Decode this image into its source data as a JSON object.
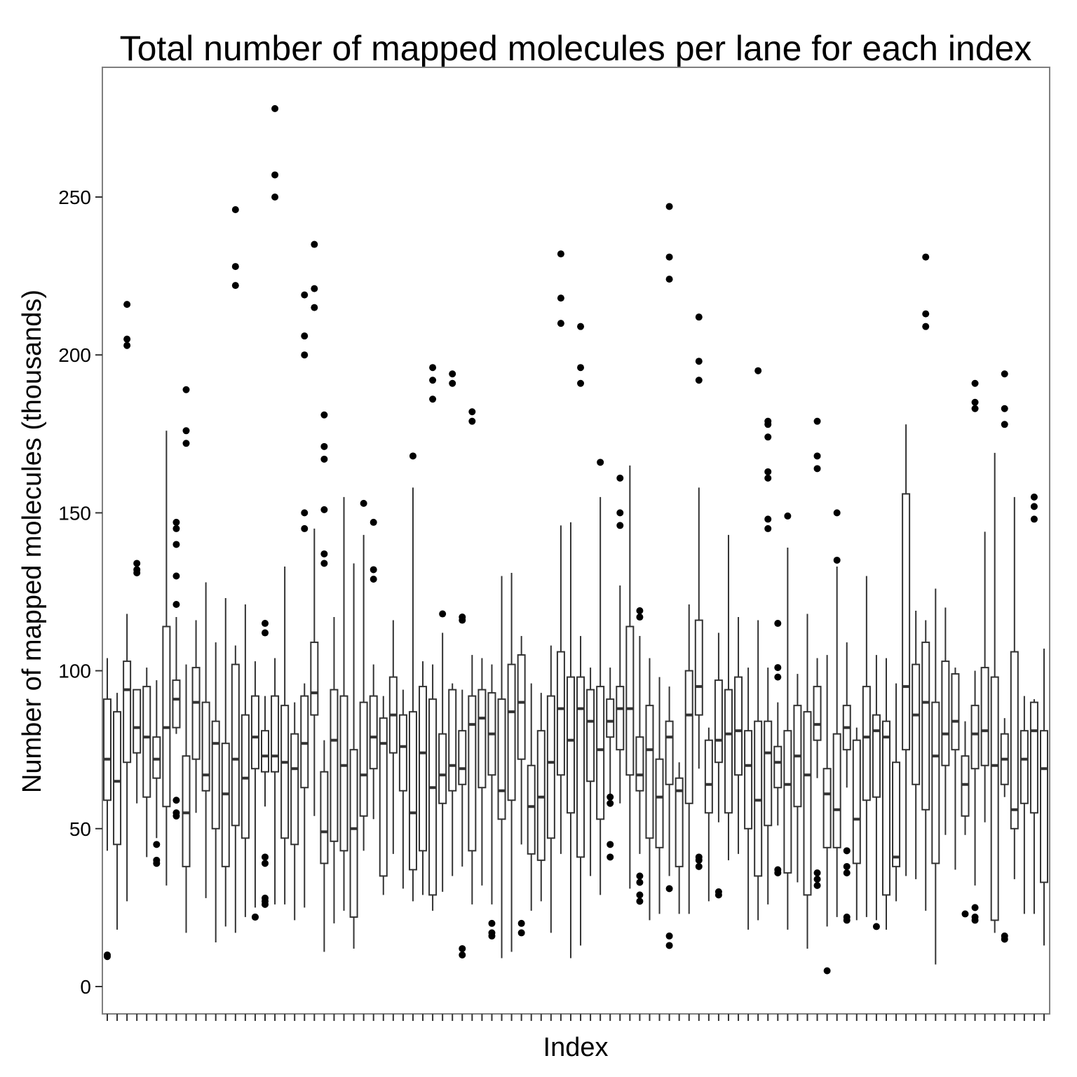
{
  "chart_data": {
    "type": "boxplot",
    "title": "Total number of mapped molecules per lane for each index",
    "xlabel": "Index",
    "ylabel": "Number of mapped molecules (thousands)",
    "ylim": [
      -9,
      291
    ],
    "yticks": [
      0,
      50,
      100,
      150,
      200,
      250
    ],
    "ytick_labels": [
      "0",
      "50",
      "100",
      "150",
      "200",
      "250"
    ],
    "x_tick_labels_shown": false,
    "grid": false,
    "colors": {
      "box_stroke": "#333333",
      "outlier": "#000000",
      "panel_border": "#7f7f7f",
      "tick": "#333333"
    },
    "boxes": [
      {
        "low": 43,
        "q1": 59,
        "median": 72,
        "q3": 91,
        "high": 104,
        "outliers": [
          10,
          9.5
        ]
      },
      {
        "low": 18,
        "q1": 45,
        "median": 65,
        "q3": 87,
        "high": 93,
        "outliers": []
      },
      {
        "low": 27,
        "q1": 71,
        "median": 94,
        "q3": 103,
        "high": 118,
        "outliers": [
          216,
          205,
          203
        ]
      },
      {
        "low": 58,
        "q1": 74,
        "median": 82,
        "q3": 94,
        "high": 94,
        "outliers": [
          134,
          132,
          131
        ]
      },
      {
        "low": 41,
        "q1": 60,
        "median": 79,
        "q3": 95,
        "high": 101,
        "outliers": []
      },
      {
        "low": 47,
        "q1": 66,
        "median": 72,
        "q3": 79,
        "high": 97,
        "outliers": [
          45,
          40,
          39
        ]
      },
      {
        "low": 32,
        "q1": 57,
        "median": 82,
        "q3": 114,
        "high": 176,
        "outliers": []
      },
      {
        "low": 80,
        "q1": 82,
        "median": 91,
        "q3": 97,
        "high": 117,
        "outliers": [
          147,
          145,
          140,
          130,
          121,
          59,
          55,
          54
        ]
      },
      {
        "low": 17,
        "q1": 38,
        "median": 55,
        "q3": 73,
        "high": 102,
        "outliers": [
          189,
          176,
          172
        ]
      },
      {
        "low": 55,
        "q1": 72,
        "median": 90,
        "q3": 101,
        "high": 116,
        "outliers": []
      },
      {
        "low": 28,
        "q1": 62,
        "median": 67,
        "q3": 90,
        "high": 128,
        "outliers": []
      },
      {
        "low": 14,
        "q1": 50,
        "median": 77,
        "q3": 84,
        "high": 109,
        "outliers": []
      },
      {
        "low": 19,
        "q1": 38,
        "median": 61,
        "q3": 77,
        "high": 123,
        "outliers": []
      },
      {
        "low": 17,
        "q1": 51,
        "median": 72,
        "q3": 102,
        "high": 108,
        "outliers": [
          246,
          228,
          222
        ]
      },
      {
        "low": 22,
        "q1": 47,
        "median": 66,
        "q3": 86,
        "high": 121,
        "outliers": []
      },
      {
        "low": 25,
        "q1": 69,
        "median": 79,
        "q3": 92,
        "high": 103,
        "outliers": [
          22,
          22
        ]
      },
      {
        "low": 57,
        "q1": 68,
        "median": 73,
        "q3": 81,
        "high": 92,
        "outliers": [
          115,
          112,
          41,
          39,
          28,
          27,
          26
        ]
      },
      {
        "low": 26,
        "q1": 68,
        "median": 73,
        "q3": 92,
        "high": 104,
        "outliers": [
          278,
          257,
          250
        ]
      },
      {
        "low": 26,
        "q1": 47,
        "median": 71,
        "q3": 89,
        "high": 133,
        "outliers": []
      },
      {
        "low": 21,
        "q1": 45,
        "median": 69,
        "q3": 80,
        "high": 90,
        "outliers": []
      },
      {
        "low": 25,
        "q1": 63,
        "median": 77,
        "q3": 92,
        "high": 96,
        "outliers": [
          219,
          206,
          200,
          150,
          145
        ]
      },
      {
        "low": 54,
        "q1": 86,
        "median": 93,
        "q3": 109,
        "high": 145,
        "outliers": [
          235,
          221,
          215
        ]
      },
      {
        "low": 11,
        "q1": 39,
        "median": 49,
        "q3": 68,
        "high": 78,
        "outliers": [
          181,
          171,
          167,
          151,
          137,
          134
        ]
      },
      {
        "low": 20,
        "q1": 46,
        "median": 78,
        "q3": 94,
        "high": 117,
        "outliers": []
      },
      {
        "low": 24,
        "q1": 43,
        "median": 70,
        "q3": 92,
        "high": 155,
        "outliers": []
      },
      {
        "low": 12,
        "q1": 22,
        "median": 50,
        "q3": 75,
        "high": 134,
        "outliers": []
      },
      {
        "low": 43,
        "q1": 54,
        "median": 67,
        "q3": 90,
        "high": 143,
        "outliers": [
          153
        ]
      },
      {
        "low": 53,
        "q1": 69,
        "median": 79,
        "q3": 92,
        "high": 102,
        "outliers": [
          147,
          132,
          129
        ]
      },
      {
        "low": 29,
        "q1": 35,
        "median": 77,
        "q3": 85,
        "high": 92,
        "outliers": []
      },
      {
        "low": 42,
        "q1": 74,
        "median": 86,
        "q3": 98,
        "high": 116,
        "outliers": []
      },
      {
        "low": 31,
        "q1": 62,
        "median": 76,
        "q3": 86,
        "high": 94,
        "outliers": []
      },
      {
        "low": 27,
        "q1": 37,
        "median": 55,
        "q3": 87,
        "high": 158,
        "outliers": [
          168
        ]
      },
      {
        "low": 29,
        "q1": 43,
        "median": 74,
        "q3": 95,
        "high": 103,
        "outliers": []
      },
      {
        "low": 24,
        "q1": 29,
        "median": 63,
        "q3": 91,
        "high": 102,
        "outliers": [
          196,
          192,
          186
        ]
      },
      {
        "low": 30,
        "q1": 58,
        "median": 67,
        "q3": 80,
        "high": 112,
        "outliers": [
          118
        ]
      },
      {
        "low": 35,
        "q1": 62,
        "median": 70,
        "q3": 94,
        "high": 96,
        "outliers": [
          194,
          191
        ]
      },
      {
        "low": 38,
        "q1": 64,
        "median": 69,
        "q3": 81,
        "high": 94,
        "outliers": [
          117,
          116,
          12,
          10
        ]
      },
      {
        "low": 26,
        "q1": 43,
        "median": 83,
        "q3": 92,
        "high": 105,
        "outliers": [
          182,
          179
        ]
      },
      {
        "low": 32,
        "q1": 63,
        "median": 85,
        "q3": 94,
        "high": 104,
        "outliers": []
      },
      {
        "low": 26,
        "q1": 67,
        "median": 80,
        "q3": 93,
        "high": 102,
        "outliers": [
          20,
          17,
          16
        ]
      },
      {
        "low": 9,
        "q1": 53,
        "median": 62,
        "q3": 91,
        "high": 130,
        "outliers": []
      },
      {
        "low": 11,
        "q1": 59,
        "median": 87,
        "q3": 102,
        "high": 131,
        "outliers": []
      },
      {
        "low": 45,
        "q1": 72,
        "median": 90,
        "q3": 105,
        "high": 111,
        "outliers": [
          20,
          17
        ]
      },
      {
        "low": 24,
        "q1": 42,
        "median": 57,
        "q3": 70,
        "high": 96,
        "outliers": []
      },
      {
        "low": 27,
        "q1": 40,
        "median": 60,
        "q3": 81,
        "high": 93,
        "outliers": []
      },
      {
        "low": 17,
        "q1": 47,
        "median": 71,
        "q3": 92,
        "high": 108,
        "outliers": []
      },
      {
        "low": 42,
        "q1": 67,
        "median": 88,
        "q3": 106,
        "high": 146,
        "outliers": [
          232,
          218,
          210
        ]
      },
      {
        "low": 9,
        "q1": 55,
        "median": 78,
        "q3": 98,
        "high": 147,
        "outliers": []
      },
      {
        "low": 13,
        "q1": 41,
        "median": 88,
        "q3": 98,
        "high": 111,
        "outliers": [
          209,
          196,
          191
        ]
      },
      {
        "low": 35,
        "q1": 65,
        "median": 84,
        "q3": 94,
        "high": 101,
        "outliers": []
      },
      {
        "low": 29,
        "q1": 53,
        "median": 75,
        "q3": 95,
        "high": 155,
        "outliers": [
          166
        ]
      },
      {
        "low": 61,
        "q1": 79,
        "median": 84,
        "q3": 91,
        "high": 101,
        "outliers": [
          60,
          58,
          45,
          41
        ]
      },
      {
        "low": 58,
        "q1": 75,
        "median": 88,
        "q3": 95,
        "high": 127,
        "outliers": [
          161,
          150,
          146
        ]
      },
      {
        "low": 31,
        "q1": 67,
        "median": 88,
        "q3": 114,
        "high": 165,
        "outliers": []
      },
      {
        "low": 42,
        "q1": 62,
        "median": 67,
        "q3": 79,
        "high": 111,
        "outliers": [
          119,
          117,
          35,
          33,
          29,
          27
        ]
      },
      {
        "low": 21,
        "q1": 47,
        "median": 75,
        "q3": 89,
        "high": 104,
        "outliers": []
      },
      {
        "low": 23,
        "q1": 44,
        "median": 60,
        "q3": 72,
        "high": 98,
        "outliers": []
      },
      {
        "low": 35,
        "q1": 64,
        "median": 79,
        "q3": 84,
        "high": 95,
        "outliers": [
          247,
          231,
          224,
          31,
          16,
          13
        ]
      },
      {
        "low": 23,
        "q1": 38,
        "median": 62,
        "q3": 66,
        "high": 71,
        "outliers": []
      },
      {
        "low": 23,
        "q1": 58,
        "median": 86,
        "q3": 100,
        "high": 121,
        "outliers": []
      },
      {
        "low": 69,
        "q1": 86,
        "median": 95,
        "q3": 116,
        "high": 158,
        "outliers": [
          212,
          198,
          192,
          41,
          40,
          38
        ]
      },
      {
        "low": 27,
        "q1": 55,
        "median": 64,
        "q3": 78,
        "high": 82,
        "outliers": []
      },
      {
        "low": 52,
        "q1": 71,
        "median": 78,
        "q3": 97,
        "high": 112,
        "outliers": [
          30,
          29
        ]
      },
      {
        "low": 40,
        "q1": 55,
        "median": 80,
        "q3": 94,
        "high": 143,
        "outliers": []
      },
      {
        "low": 42,
        "q1": 67,
        "median": 81,
        "q3": 98,
        "high": 117,
        "outliers": []
      },
      {
        "low": 18,
        "q1": 50,
        "median": 70,
        "q3": 81,
        "high": 101,
        "outliers": []
      },
      {
        "low": 21,
        "q1": 35,
        "median": 59,
        "q3": 84,
        "high": 116,
        "outliers": [
          195
        ]
      },
      {
        "low": 26,
        "q1": 51,
        "median": 74,
        "q3": 84,
        "high": 101,
        "outliers": [
          178,
          174,
          179,
          163,
          161,
          148,
          145
        ]
      },
      {
        "low": 51,
        "q1": 63,
        "median": 71,
        "q3": 76,
        "high": 90,
        "outliers": [
          115,
          101,
          98,
          37,
          36
        ]
      },
      {
        "low": 18,
        "q1": 36,
        "median": 64,
        "q3": 81,
        "high": 139,
        "outliers": [
          149
        ]
      },
      {
        "low": 33,
        "q1": 57,
        "median": 73,
        "q3": 89,
        "high": 99,
        "outliers": []
      },
      {
        "low": 12,
        "q1": 29,
        "median": 67,
        "q3": 87,
        "high": 118,
        "outliers": []
      },
      {
        "low": 66,
        "q1": 78,
        "median": 83,
        "q3": 95,
        "high": 104,
        "outliers": [
          179,
          168,
          164,
          36,
          34,
          32
        ]
      },
      {
        "low": 19,
        "q1": 44,
        "median": 61,
        "q3": 69,
        "high": 105,
        "outliers": [
          5
        ]
      },
      {
        "low": 22,
        "q1": 44,
        "median": 56,
        "q3": 80,
        "high": 133,
        "outliers": [
          150,
          135
        ]
      },
      {
        "low": 63,
        "q1": 75,
        "median": 82,
        "q3": 89,
        "high": 109,
        "outliers": [
          43,
          38,
          36,
          22,
          21
        ]
      },
      {
        "low": 21,
        "q1": 39,
        "median": 53,
        "q3": 78,
        "high": 82,
        "outliers": []
      },
      {
        "low": 22,
        "q1": 59,
        "median": 79,
        "q3": 95,
        "high": 130,
        "outliers": []
      },
      {
        "low": 21,
        "q1": 60,
        "median": 81,
        "q3": 86,
        "high": 105,
        "outliers": [
          19
        ]
      },
      {
        "low": 18,
        "q1": 29,
        "median": 79,
        "q3": 84,
        "high": 104,
        "outliers": []
      },
      {
        "low": 27,
        "q1": 38,
        "median": 41,
        "q3": 71,
        "high": 96,
        "outliers": []
      },
      {
        "low": 35,
        "q1": 75,
        "median": 95,
        "q3": 156,
        "high": 178,
        "outliers": []
      },
      {
        "low": 34,
        "q1": 64,
        "median": 86,
        "q3": 102,
        "high": 119,
        "outliers": []
      },
      {
        "low": 24,
        "q1": 56,
        "median": 90,
        "q3": 109,
        "high": 116,
        "outliers": [
          231,
          213,
          209
        ]
      },
      {
        "low": 7,
        "q1": 39,
        "median": 73,
        "q3": 90,
        "high": 126,
        "outliers": []
      },
      {
        "low": 48,
        "q1": 70,
        "median": 80,
        "q3": 103,
        "high": 120,
        "outliers": []
      },
      {
        "low": 37,
        "q1": 75,
        "median": 84,
        "q3": 99,
        "high": 101,
        "outliers": []
      },
      {
        "low": 48,
        "q1": 54,
        "median": 64,
        "q3": 73,
        "high": 84,
        "outliers": [
          23
        ]
      },
      {
        "low": 32,
        "q1": 69,
        "median": 80,
        "q3": 89,
        "high": 100,
        "outliers": [
          191,
          185,
          183,
          25,
          22,
          21
        ]
      },
      {
        "low": 52,
        "q1": 70,
        "median": 81,
        "q3": 101,
        "high": 144,
        "outliers": []
      },
      {
        "low": 17,
        "q1": 21,
        "median": 70,
        "q3": 98,
        "high": 169,
        "outliers": []
      },
      {
        "low": 60,
        "q1": 64,
        "median": 72,
        "q3": 80,
        "high": 85,
        "outliers": [
          194,
          183,
          178,
          16,
          15
        ]
      },
      {
        "low": 34,
        "q1": 50,
        "median": 56,
        "q3": 106,
        "high": 155,
        "outliers": []
      },
      {
        "low": 23,
        "q1": 58,
        "median": 72,
        "q3": 81,
        "high": 92,
        "outliers": []
      },
      {
        "low": 23,
        "q1": 55,
        "median": 81,
        "q3": 90,
        "high": 91,
        "outliers": [
          155,
          152,
          148
        ]
      },
      {
        "low": 13,
        "q1": 33,
        "median": 69,
        "q3": 81,
        "high": 107,
        "outliers": []
      }
    ]
  }
}
